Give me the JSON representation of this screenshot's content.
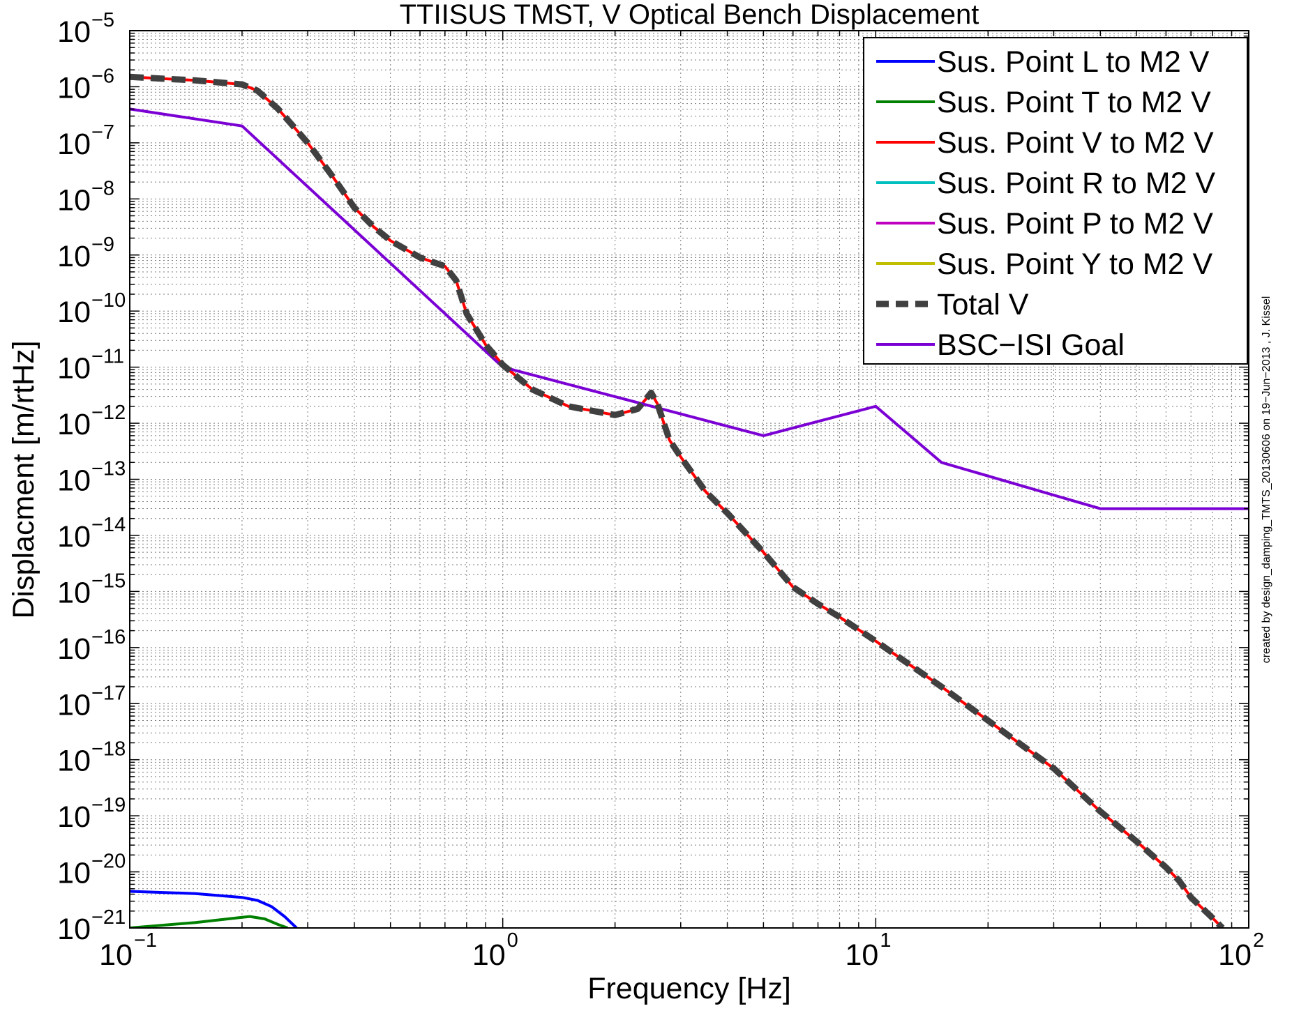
{
  "chart_data": {
    "type": "line",
    "title": "TTIISUS  TMST, V Optical Bench Displacement",
    "xlabel": "Frequency [Hz]",
    "ylabel": "Displacment [m/rtHz]",
    "xscale": "log",
    "yscale": "log",
    "xlim": [
      0.1,
      100
    ],
    "ylim": [
      1e-21,
      1e-05
    ],
    "grid": true,
    "legend_position": "top-right",
    "x_ticks": [
      {
        "value": 0.1,
        "base": "10",
        "exp": "−1"
      },
      {
        "value": 1,
        "base": "10",
        "exp": "0"
      },
      {
        "value": 10,
        "base": "10",
        "exp": "1"
      },
      {
        "value": 100,
        "base": "10",
        "exp": "2"
      }
    ],
    "y_ticks": [
      {
        "value": 1e-05,
        "base": "10",
        "exp": "−5"
      },
      {
        "value": 1e-06,
        "base": "10",
        "exp": "−6"
      },
      {
        "value": 1e-07,
        "base": "10",
        "exp": "−7"
      },
      {
        "value": 1e-08,
        "base": "10",
        "exp": "−8"
      },
      {
        "value": 1e-09,
        "base": "10",
        "exp": "−9"
      },
      {
        "value": 1e-10,
        "base": "10",
        "exp": "−10"
      },
      {
        "value": 1e-11,
        "base": "10",
        "exp": "−11"
      },
      {
        "value": 1e-12,
        "base": "10",
        "exp": "−12"
      },
      {
        "value": 1e-13,
        "base": "10",
        "exp": "−13"
      },
      {
        "value": 1e-14,
        "base": "10",
        "exp": "−14"
      },
      {
        "value": 1e-15,
        "base": "10",
        "exp": "−15"
      },
      {
        "value": 1e-16,
        "base": "10",
        "exp": "−16"
      },
      {
        "value": 1e-17,
        "base": "10",
        "exp": "−17"
      },
      {
        "value": 1e-18,
        "base": "10",
        "exp": "−18"
      },
      {
        "value": 1e-19,
        "base": "10",
        "exp": "−19"
      },
      {
        "value": 1e-20,
        "base": "10",
        "exp": "−20"
      },
      {
        "value": 1e-21,
        "base": "10",
        "exp": "−21"
      }
    ],
    "annotation": "created by design_damping_TMTS_20130606 on 19−Jun−2013 , J. Kissel",
    "series": [
      {
        "name": "Sus. Point L to M2 V",
        "color": "#0000ff",
        "style": "solid",
        "points": [
          [
            0.1,
            4.5e-21
          ],
          [
            0.15,
            4.1e-21
          ],
          [
            0.2,
            3.5e-21
          ],
          [
            0.22,
            3.1e-21
          ],
          [
            0.24,
            2.4e-21
          ],
          [
            0.26,
            1.6e-21
          ],
          [
            0.28,
            1e-21
          ]
        ]
      },
      {
        "name": "Sus. Point T to M2 V",
        "color": "#008000",
        "style": "solid",
        "points": [
          [
            0.1,
            1e-21
          ],
          [
            0.15,
            1.25e-21
          ],
          [
            0.2,
            1.55e-21
          ],
          [
            0.21,
            1.6e-21
          ],
          [
            0.23,
            1.45e-21
          ],
          [
            0.25,
            1.15e-21
          ],
          [
            0.265,
            1e-21
          ]
        ]
      },
      {
        "name": "Sus. Point V to M2 V",
        "color": "#ff0000",
        "style": "solid",
        "points": [
          [
            0.1,
            1.5e-06
          ],
          [
            0.15,
            1.3e-06
          ],
          [
            0.2,
            1.1e-06
          ],
          [
            0.22,
            8.5e-07
          ],
          [
            0.25,
            4e-07
          ],
          [
            0.3,
            1e-07
          ],
          [
            0.35,
            2.5e-08
          ],
          [
            0.4,
            7e-09
          ],
          [
            0.45,
            3.2e-09
          ],
          [
            0.5,
            1.8e-09
          ],
          [
            0.6,
            9e-10
          ],
          [
            0.7,
            6.3e-10
          ],
          [
            0.75,
            3.5e-10
          ],
          [
            0.8,
            9e-11
          ],
          [
            0.9,
            2.5e-11
          ],
          [
            1,
            1.1e-11
          ],
          [
            1.2,
            4e-12
          ],
          [
            1.5,
            2e-12
          ],
          [
            2,
            1.4e-12
          ],
          [
            2.3,
            1.8e-12
          ],
          [
            2.5,
            3.5e-12
          ],
          [
            2.6,
            2.2e-12
          ],
          [
            2.8,
            5e-13
          ],
          [
            3,
            2.5e-13
          ],
          [
            3.5,
            6e-14
          ],
          [
            4,
            2.5e-14
          ],
          [
            5,
            5e-15
          ],
          [
            6,
            1.2e-15
          ],
          [
            7,
            6e-16
          ],
          [
            8,
            3.5e-16
          ],
          [
            10,
            1.3e-16
          ],
          [
            15,
            2e-17
          ],
          [
            20,
            5e-18
          ],
          [
            30,
            7e-19
          ],
          [
            40,
            1.2e-19
          ],
          [
            50,
            3.5e-20
          ],
          [
            60,
            1.2e-20
          ],
          [
            65,
            7e-21
          ],
          [
            70,
            3.5e-21
          ],
          [
            80,
            1.5e-21
          ],
          [
            85,
            1e-21
          ]
        ]
      },
      {
        "name": "Sus. Point R to M2 V",
        "color": "#00bfbf",
        "style": "solid",
        "points": []
      },
      {
        "name": "Sus. Point P to M2 V",
        "color": "#bf00bf",
        "style": "solid",
        "points": []
      },
      {
        "name": "Sus. Point Y to M2 V",
        "color": "#bfbf00",
        "style": "solid",
        "points": []
      },
      {
        "name": "Total V",
        "color": "#404040",
        "style": "dashed",
        "points": [
          [
            0.1,
            1.5e-06
          ],
          [
            0.15,
            1.3e-06
          ],
          [
            0.2,
            1.1e-06
          ],
          [
            0.22,
            8.5e-07
          ],
          [
            0.25,
            4e-07
          ],
          [
            0.3,
            1e-07
          ],
          [
            0.35,
            2.5e-08
          ],
          [
            0.4,
            7e-09
          ],
          [
            0.45,
            3.2e-09
          ],
          [
            0.5,
            1.8e-09
          ],
          [
            0.6,
            9e-10
          ],
          [
            0.7,
            6.3e-10
          ],
          [
            0.75,
            3.5e-10
          ],
          [
            0.8,
            9e-11
          ],
          [
            0.9,
            2.5e-11
          ],
          [
            1,
            1.1e-11
          ],
          [
            1.2,
            4e-12
          ],
          [
            1.5,
            2e-12
          ],
          [
            2,
            1.4e-12
          ],
          [
            2.3,
            1.8e-12
          ],
          [
            2.5,
            3.5e-12
          ],
          [
            2.6,
            2.2e-12
          ],
          [
            2.8,
            5e-13
          ],
          [
            3,
            2.5e-13
          ],
          [
            3.5,
            6e-14
          ],
          [
            4,
            2.5e-14
          ],
          [
            5,
            5e-15
          ],
          [
            6,
            1.2e-15
          ],
          [
            7,
            6e-16
          ],
          [
            8,
            3.5e-16
          ],
          [
            10,
            1.3e-16
          ],
          [
            15,
            2e-17
          ],
          [
            20,
            5e-18
          ],
          [
            30,
            7e-19
          ],
          [
            40,
            1.2e-19
          ],
          [
            50,
            3.5e-20
          ],
          [
            60,
            1.2e-20
          ],
          [
            65,
            7e-21
          ],
          [
            70,
            3.5e-21
          ],
          [
            80,
            1.5e-21
          ],
          [
            85,
            1e-21
          ]
        ]
      },
      {
        "name": "BSC−ISI Goal",
        "color": "#7b00d4",
        "style": "solid",
        "points": [
          [
            0.1,
            4e-07
          ],
          [
            0.2,
            2e-07
          ],
          [
            1,
            1e-11
          ],
          [
            5,
            6e-13
          ],
          [
            10,
            2e-12
          ],
          [
            15,
            2e-13
          ],
          [
            40,
            3e-14
          ],
          [
            100,
            3e-14
          ]
        ]
      }
    ]
  }
}
